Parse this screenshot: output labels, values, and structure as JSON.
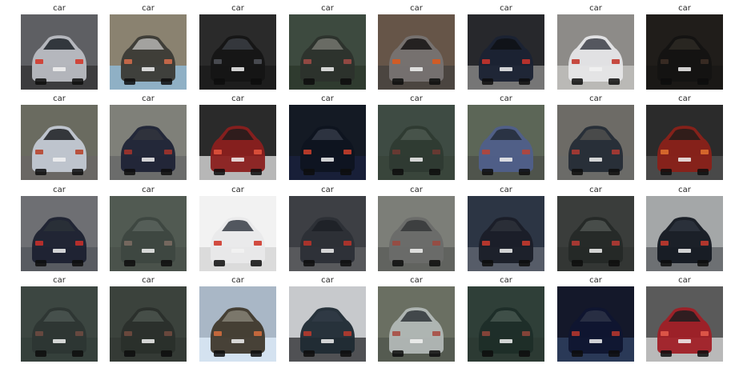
{
  "figure": {
    "rows": 4,
    "cols": 8,
    "panels": [
      {
        "title": "car",
        "image": "photo-gray-hatchback-rear",
        "colors": {
          "bg": "#5e5f63",
          "body": "#b9bcc2",
          "window": "#2b2f36",
          "light": "#d23a2c",
          "ground": "#3a3a3c"
        }
      },
      {
        "title": "car",
        "image": "blurry-car-rear",
        "colors": {
          "bg": "#8a8270",
          "body": "#3b3a35",
          "window": "#a9a8a4",
          "light": "#cf6a4a",
          "ground": "#8fb2c9"
        }
      },
      {
        "title": "car",
        "image": "dark-car-rear",
        "colors": {
          "bg": "#2a2a2a",
          "body": "#151515",
          "window": "#36393e",
          "light": "#4d4f55",
          "ground": "#1c1c1c"
        }
      },
      {
        "title": "car",
        "image": "dark-green-car-rear",
        "colors": {
          "bg": "#3d4a3f",
          "body": "#2c312c",
          "window": "#6d6f67",
          "light": "#9b4a45",
          "ground": "#2e3a2e"
        }
      },
      {
        "title": "car",
        "image": "gray-sedan-rear-sunlit",
        "colors": {
          "bg": "#665548",
          "body": "#777372",
          "window": "#201c1c",
          "light": "#d95a1f",
          "ground": "#4a4540"
        }
      },
      {
        "title": "car",
        "image": "dark-blue-car-street",
        "colors": {
          "bg": "#27282c",
          "body": "#1a2233",
          "window": "#101318",
          "light": "#c7332b",
          "ground": "#7a7a7a"
        }
      },
      {
        "title": "car",
        "image": "white-car-rear",
        "colors": {
          "bg": "#8d8b88",
          "body": "#e6e6e8",
          "window": "#4d4f57",
          "light": "#c33a2d",
          "ground": "#bdbcb8"
        }
      },
      {
        "title": "car",
        "image": "very-dark-car-rear",
        "colors": {
          "bg": "#201d1a",
          "body": "#141312",
          "window": "#2a2723",
          "light": "#3b2e25",
          "ground": "#1a1816"
        }
      },
      {
        "title": "car",
        "image": "silver-hatchback-rear",
        "colors": {
          "bg": "#6a6b60",
          "body": "#c3c9d3",
          "window": "#2c2f33",
          "light": "#b7462f",
          "ground": "#6a6764"
        }
      },
      {
        "title": "car",
        "image": "navy-car-rear",
        "colors": {
          "bg": "#7f8079",
          "body": "#1f2336",
          "window": "#30333c",
          "light": "#a1332c",
          "ground": "#6a6a6a"
        }
      },
      {
        "title": "car",
        "image": "red-minivan-rear",
        "colors": {
          "bg": "#2a2a2a",
          "body": "#8a1f1d",
          "window": "#2a1c1c",
          "light": "#e0523c",
          "ground": "#bfbfbf"
        }
      },
      {
        "title": "car",
        "image": "black-car-night-rear",
        "colors": {
          "bg": "#141a24",
          "body": "#0e1420",
          "window": "#2f3542",
          "light": "#c43d2a",
          "ground": "#18203a"
        }
      },
      {
        "title": "car",
        "image": "dark-green-car-rear-2",
        "colors": {
          "bg": "#3e4b43",
          "body": "#2e3a32",
          "window": "#49544c",
          "light": "#6d3a32",
          "ground": "#39443b"
        }
      },
      {
        "title": "car",
        "image": "blue-hatchback-rear",
        "colors": {
          "bg": "#5c6657",
          "body": "#4f5f8a",
          "window": "#283040",
          "light": "#b2453b",
          "ground": "#4e534c"
        }
      },
      {
        "title": "car",
        "image": "dark-car-rear-blurred",
        "colors": {
          "bg": "#6d6b66",
          "body": "#252c36",
          "window": "#4b4c4b",
          "light": "#aa3a33",
          "ground": "#6c6b68"
        }
      },
      {
        "title": "car",
        "image": "red-car-rear",
        "colors": {
          "bg": "#2b2b2b",
          "body": "#8a2119",
          "window": "#2c1d1a",
          "light": "#dd6e2e",
          "ground": "#4b4b4b"
        }
      },
      {
        "title": "car",
        "image": "dark-car-street-rear",
        "colors": {
          "bg": "#6e6f73",
          "body": "#1c2130",
          "window": "#2a2f38",
          "light": "#c4302b",
          "ground": "#565a60"
        }
      },
      {
        "title": "car",
        "image": "faded-green-van",
        "colors": {
          "bg": "#515a52",
          "body": "#3d4740",
          "window": "#56605a",
          "light": "#7a6a62",
          "ground": "#4a524b"
        }
      },
      {
        "title": "car",
        "image": "white-sedan-angle",
        "colors": {
          "bg": "#f2f2f2",
          "body": "#e9e9ea",
          "window": "#4a4f57",
          "light": "#cf3a2e",
          "ground": "#d9d9d9"
        }
      },
      {
        "title": "car",
        "image": "dark-hatchback-angle",
        "colors": {
          "bg": "#3d3f44",
          "body": "#2c2f36",
          "window": "#1f2228",
          "light": "#b5342b",
          "ground": "#5a5b5e"
        }
      },
      {
        "title": "car",
        "image": "gray-minivan-rear",
        "colors": {
          "bg": "#7c7e78",
          "body": "#6a6c69",
          "window": "#3b3d3e",
          "light": "#9a4a40",
          "ground": "#60625e"
        }
      },
      {
        "title": "car",
        "image": "dark-car-side",
        "colors": {
          "bg": "#2c3544",
          "body": "#1a1e28",
          "window": "#2b2f38",
          "light": "#c5392e",
          "ground": "#595f6a"
        }
      },
      {
        "title": "car",
        "image": "dark-car-rear-3",
        "colors": {
          "bg": "#3a3d3b",
          "body": "#252927",
          "window": "#4a4f4c",
          "light": "#b23a33",
          "ground": "#333634"
        }
      },
      {
        "title": "car",
        "image": "black-car-side-parked",
        "colors": {
          "bg": "#a4a7a8",
          "body": "#141821",
          "window": "#2b313b",
          "light": "#c2382d",
          "ground": "#6a6d70"
        }
      },
      {
        "title": "car",
        "image": "dark-green-car-rear-4",
        "colors": {
          "bg": "#3c4641",
          "body": "#2d3633",
          "window": "#48524e",
          "light": "#6d4a40",
          "ground": "#35403b"
        }
      },
      {
        "title": "car",
        "image": "dark-car-rear-5",
        "colors": {
          "bg": "#3b423c",
          "body": "#2a2f2b",
          "window": "#48504a",
          "light": "#6f4a3e",
          "ground": "#343a35"
        }
      },
      {
        "title": "car",
        "image": "blurry-car-rear-2",
        "colors": {
          "bg": "#a9b7c6",
          "body": "#3f382c",
          "window": "#7e7a6f",
          "light": "#cf6b3d",
          "ground": "#d6e4f2"
        }
      },
      {
        "title": "car",
        "image": "dark-minivan-side",
        "colors": {
          "bg": "#c7c9cc",
          "body": "#1f2a33",
          "window": "#2f3a44",
          "light": "#b63a2f",
          "ground": "#4a4b4d"
        }
      },
      {
        "title": "car",
        "image": "silver-sedan-rear",
        "colors": {
          "bg": "#6a6f62",
          "body": "#b2b8b6",
          "window": "#3c4246",
          "light": "#a94c42",
          "ground": "#545a50"
        }
      },
      {
        "title": "car",
        "image": "teal-car-rear",
        "colors": {
          "bg": "#2f3f38",
          "body": "#1d2d28",
          "window": "#41514a",
          "light": "#8d463a",
          "ground": "#2c3a33"
        }
      },
      {
        "title": "car",
        "image": "dark-blue-car-rear-night",
        "colors": {
          "bg": "#14182a",
          "body": "#0f1530",
          "window": "#2a2f45",
          "light": "#b0352d",
          "ground": "#2b3b5a"
        }
      },
      {
        "title": "car",
        "image": "red-hatchback-rear",
        "colors": {
          "bg": "#5a5a5a",
          "body": "#a01f26",
          "window": "#2a1d20",
          "light": "#e25a4a",
          "ground": "#bfbfbf"
        }
      }
    ]
  }
}
